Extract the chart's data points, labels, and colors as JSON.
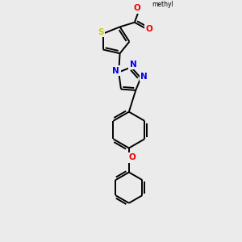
{
  "background_color": "#ebebeb",
  "bond_color": "#000000",
  "bond_width": 1.4,
  "S_color": "#cccc00",
  "N_color": "#0000ee",
  "O_color": "#ee0000",
  "C_color": "#000000",
  "font_size_atom": 7.5,
  "fig_width": 3.0,
  "fig_height": 3.0,
  "dpi": 100,
  "xlim": [
    0,
    10
  ],
  "ylim": [
    0,
    10
  ]
}
